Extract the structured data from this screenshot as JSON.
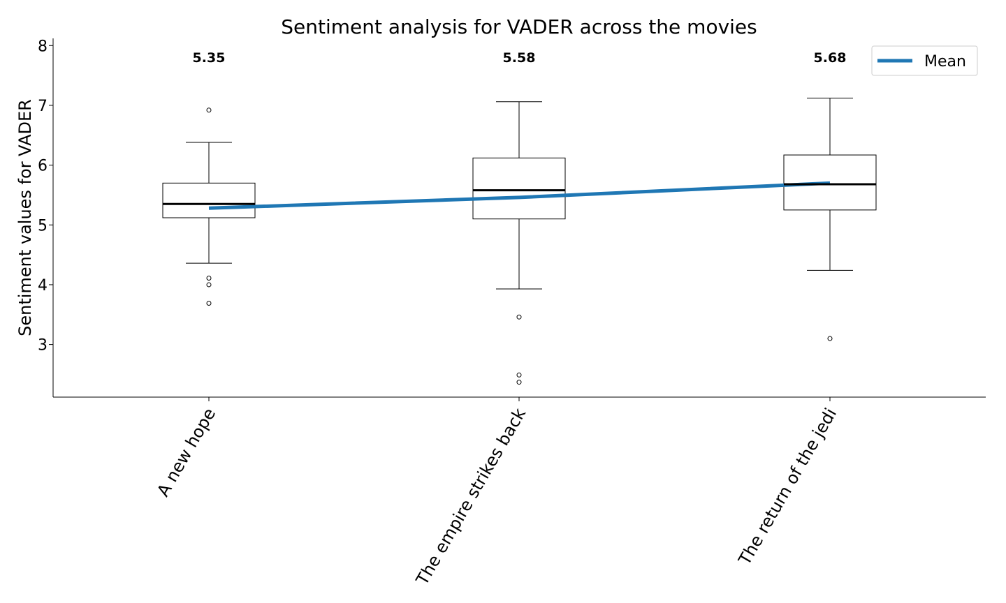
{
  "chart_data": {
    "type": "box",
    "title": "Sentiment analysis for VADER across the movies",
    "xlabel": "",
    "ylabel": "Sentiment values for VADER",
    "ylim": [
      2.12,
      8.12
    ],
    "yticks": [
      3,
      4,
      5,
      6,
      7,
      8
    ],
    "categories": [
      "A new hope",
      "The empire strikes back",
      "The return of the  jedi"
    ],
    "boxes": [
      {
        "whisker_low": 4.36,
        "q1": 5.12,
        "median": 5.35,
        "q3": 5.7,
        "whisker_high": 6.38,
        "outliers": [
          6.92,
          4.11,
          4.0,
          3.69
        ]
      },
      {
        "whisker_low": 3.93,
        "q1": 5.1,
        "median": 5.58,
        "q3": 6.12,
        "whisker_high": 7.06,
        "outliers": [
          3.46,
          2.49,
          2.37
        ]
      },
      {
        "whisker_low": 4.24,
        "q1": 5.25,
        "median": 5.68,
        "q3": 6.17,
        "whisker_high": 7.12,
        "outliers": [
          3.1
        ]
      }
    ],
    "median_labels": [
      "5.35",
      "5.58",
      "5.68"
    ],
    "series": [
      {
        "name": "Mean",
        "type": "line",
        "values": [
          5.28,
          5.46,
          5.7
        ]
      }
    ],
    "legend": {
      "position": "top-right",
      "entries": [
        "Mean"
      ]
    },
    "colors": {
      "mean_line": "#1f77b4",
      "box": "#000000",
      "median": "#000000"
    },
    "grid": false
  }
}
